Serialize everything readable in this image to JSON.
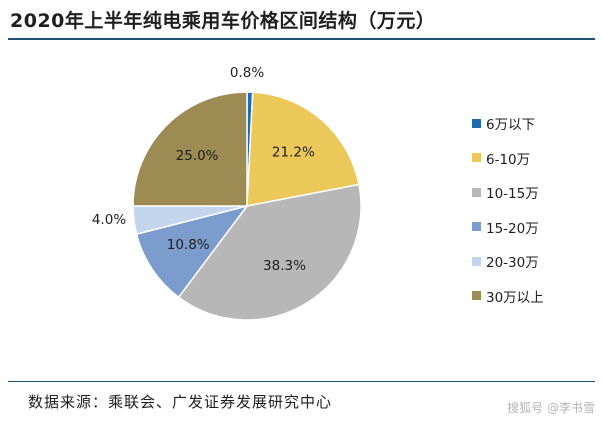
{
  "header": {
    "title": "2020年上半年纯电乘用车价格区间结构（万元）"
  },
  "chart_data": {
    "type": "pie",
    "title": "2020年上半年纯电乘用车价格区间结构（万元）",
    "unit": "%",
    "slices": [
      {
        "label": "6万以下",
        "value": 0.8,
        "display": "0.8%",
        "color": "#1f6bb1"
      },
      {
        "label": "6-10万",
        "value": 21.2,
        "display": "21.2%",
        "color": "#ecc85a"
      },
      {
        "label": "10-15万",
        "value": 38.3,
        "display": "38.3%",
        "color": "#b7b7b7"
      },
      {
        "label": "15-20万",
        "value": 10.8,
        "display": "10.8%",
        "color": "#7b9ccd"
      },
      {
        "label": "20-30万",
        "value": 4.0,
        "display": "4.0%",
        "color": "#c3d6ee"
      },
      {
        "label": "30万以上",
        "value": 25.0,
        "display": "25.0%",
        "color": "#9c8b52"
      }
    ],
    "start_angle_deg": 0,
    "direction": "clockwise",
    "legend_position": "right",
    "grid": false
  },
  "footer": {
    "source": "数据来源：乘联会、广发证券发展研究中心",
    "watermark": "搜狐号 @李书雪"
  }
}
